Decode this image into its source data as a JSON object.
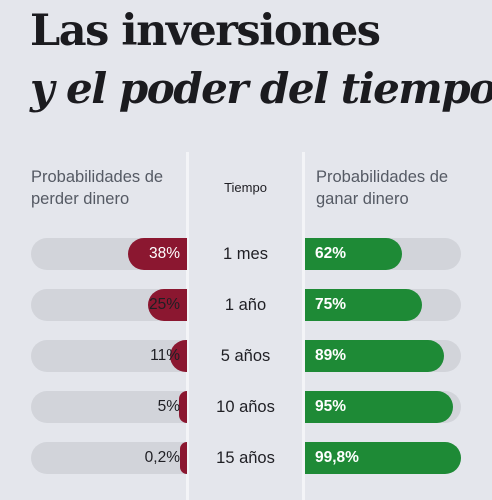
{
  "title": {
    "line1": "Las inversiones",
    "line2": "y el poder del tiempo"
  },
  "headers": {
    "left": "Probabilidades de perder dinero",
    "middle": "Tiempo",
    "right": "Probabilidades de ganar dinero"
  },
  "colors": {
    "loss": "#8b1730",
    "gain": "#1e8a36",
    "track": "#d2d4da",
    "background": "#e4e6ec"
  },
  "chart_data": {
    "type": "bar",
    "title": "Las inversiones y el poder del tiempo",
    "categories": [
      "1 mes",
      "1 año",
      "5 años",
      "10 años",
      "15 años"
    ],
    "series": [
      {
        "name": "Probabilidades de perder dinero",
        "values": [
          38,
          25,
          11,
          5,
          0.2
        ],
        "labels": [
          "38%",
          "25%",
          "11%",
          "5%",
          "0,2%"
        ]
      },
      {
        "name": "Probabilidades de ganar dinero",
        "values": [
          62,
          75,
          89,
          95,
          99.8
        ],
        "labels": [
          "62%",
          "75%",
          "89%",
          "95%",
          "99,8%"
        ]
      }
    ],
    "xlim": [
      0,
      100
    ]
  }
}
